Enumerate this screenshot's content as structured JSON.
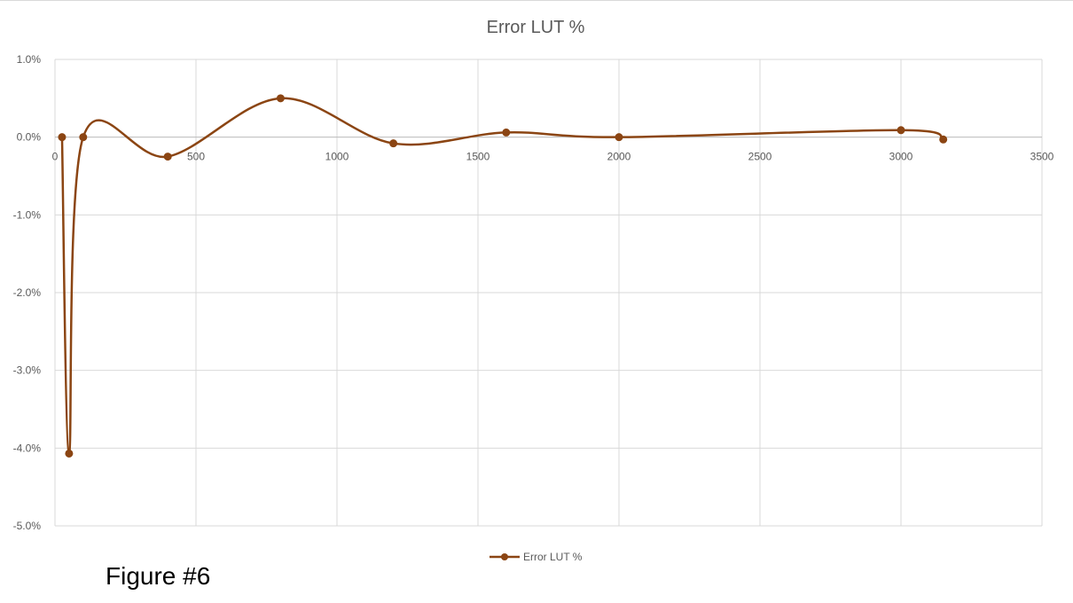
{
  "caption": "Figure #6",
  "colors": {
    "series": "#8B4513",
    "grid": "#d9d9d9",
    "text": "#595959"
  },
  "chart_data": {
    "type": "scatter",
    "smooth": true,
    "title": "Error LUT %",
    "xlabel": "",
    "ylabel": "",
    "xlim": [
      0,
      3500
    ],
    "ylim": [
      -0.05,
      0.01
    ],
    "x_ticks": [
      0,
      500,
      1000,
      1500,
      2000,
      2500,
      3000,
      3500
    ],
    "y_ticks": [
      0.01,
      0,
      -0.01,
      -0.02,
      -0.03,
      -0.04,
      -0.05
    ],
    "y_tick_labels": [
      "1.0%",
      "0.0%",
      "-1.0%",
      "-2.0%",
      "-3.0%",
      "-4.0%",
      "-5.0%"
    ],
    "grid": true,
    "legend": "bottom",
    "series": [
      {
        "name": "Error LUT %",
        "x": [
          25,
          50,
          100,
          400,
          800,
          1200,
          1600,
          2000,
          3000,
          3150
        ],
        "y": [
          0.0,
          -0.0407,
          0.0,
          -0.0025,
          0.005,
          -0.0008,
          0.0006,
          0.0,
          0.0009,
          -0.0003
        ]
      }
    ]
  }
}
